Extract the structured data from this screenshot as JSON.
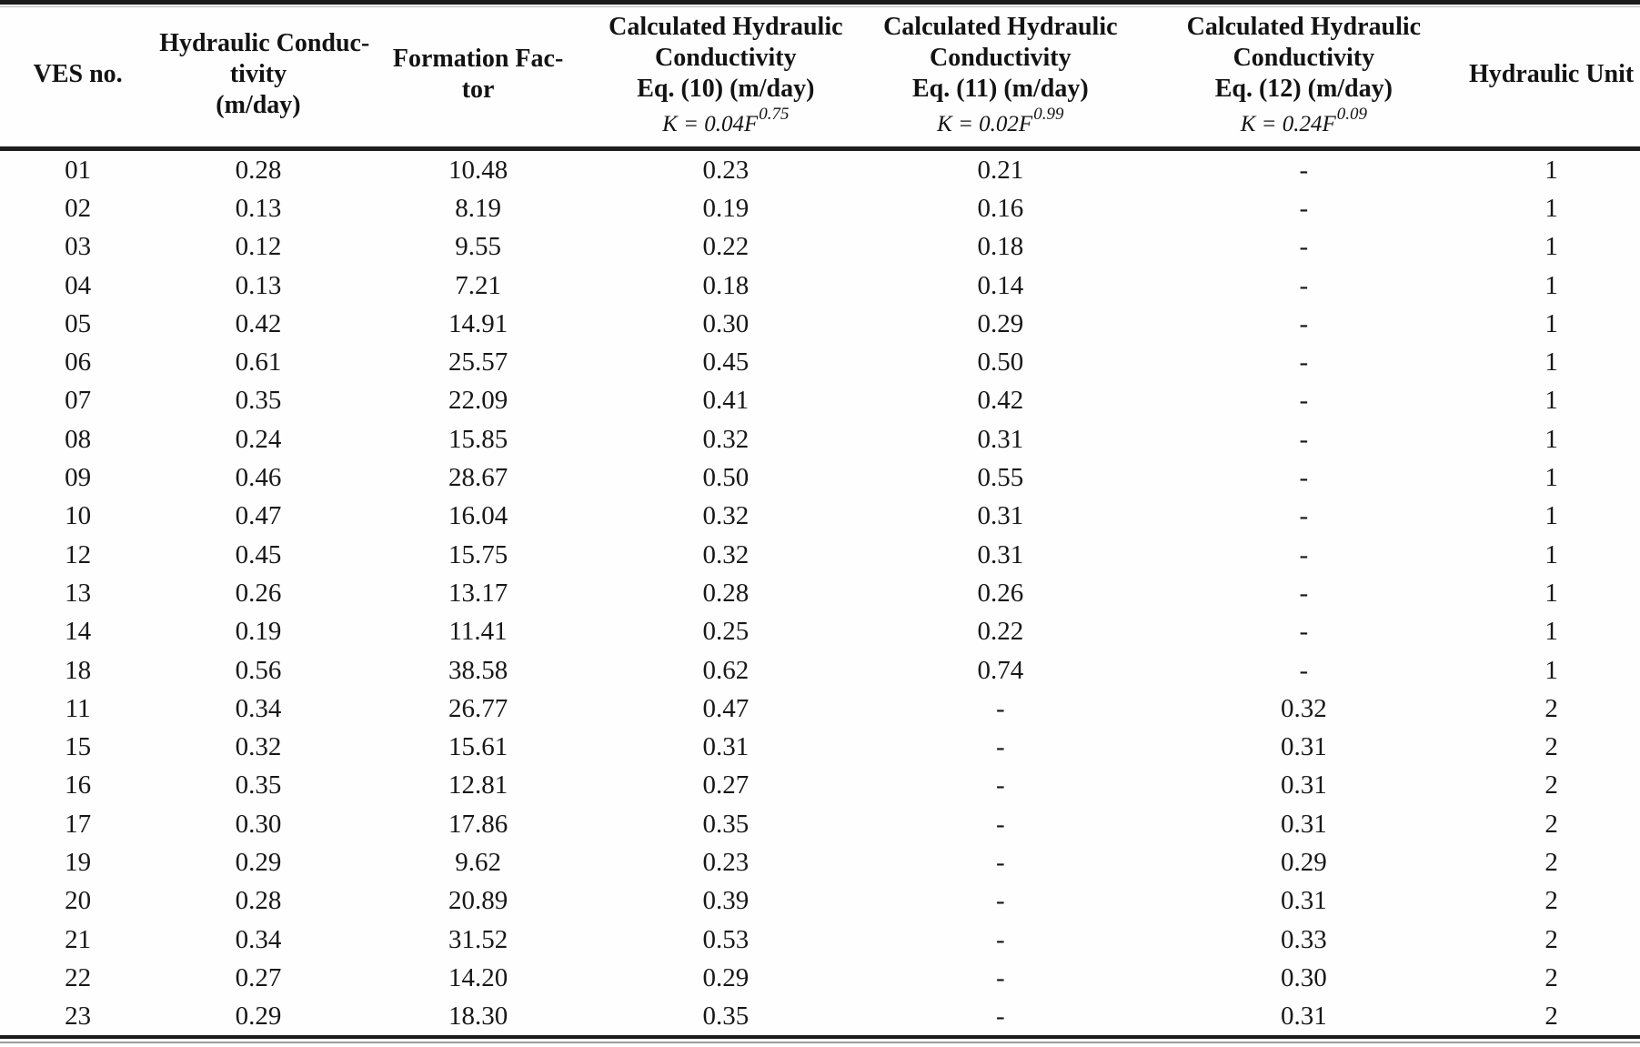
{
  "chart_data": {
    "type": "table",
    "columns": [
      {
        "id": "ves-no",
        "lines": [
          "VES no."
        ]
      },
      {
        "id": "hydraulic-conductivity",
        "lines": [
          "Hydraulic Conduc-",
          "tivity",
          "(m/day)"
        ]
      },
      {
        "id": "formation-factor",
        "lines": [
          "Formation Fac-",
          "tor"
        ]
      },
      {
        "id": "calc-eq10",
        "lines": [
          "Calculated Hydraulic",
          "Conductivity",
          "Eq. (10) (m/day)"
        ],
        "formula_base": "K = 0.04F",
        "formula_exp": "0.75"
      },
      {
        "id": "calc-eq11",
        "lines": [
          "Calculated Hydraulic",
          "Conductivity",
          "Eq. (11) (m/day)"
        ],
        "formula_base": "K = 0.02F",
        "formula_exp": "0.99"
      },
      {
        "id": "calc-eq12",
        "lines": [
          "Calculated Hydraulic",
          "Conductivity",
          "Eq. (12) (m/day)"
        ],
        "formula_base": "K = 0.24F",
        "formula_exp": "0.09"
      },
      {
        "id": "hydraulic-unit",
        "lines": [
          "Hydraulic Unit"
        ]
      }
    ],
    "rows": [
      [
        "01",
        "0.28",
        "10.48",
        "0.23",
        "0.21",
        "-",
        "1"
      ],
      [
        "02",
        "0.13",
        "8.19",
        "0.19",
        "0.16",
        "-",
        "1"
      ],
      [
        "03",
        "0.12",
        "9.55",
        "0.22",
        "0.18",
        "-",
        "1"
      ],
      [
        "04",
        "0.13",
        "7.21",
        "0.18",
        "0.14",
        "-",
        "1"
      ],
      [
        "05",
        "0.42",
        "14.91",
        "0.30",
        "0.29",
        "-",
        "1"
      ],
      [
        "06",
        "0.61",
        "25.57",
        "0.45",
        "0.50",
        "-",
        "1"
      ],
      [
        "07",
        "0.35",
        "22.09",
        "0.41",
        "0.42",
        "-",
        "1"
      ],
      [
        "08",
        "0.24",
        "15.85",
        "0.32",
        "0.31",
        "-",
        "1"
      ],
      [
        "09",
        "0.46",
        "28.67",
        "0.50",
        "0.55",
        "-",
        "1"
      ],
      [
        "10",
        "0.47",
        "16.04",
        "0.32",
        "0.31",
        "-",
        "1"
      ],
      [
        "12",
        "0.45",
        "15.75",
        "0.32",
        "0.31",
        "-",
        "1"
      ],
      [
        "13",
        "0.26",
        "13.17",
        "0.28",
        "0.26",
        "-",
        "1"
      ],
      [
        "14",
        "0.19",
        "11.41",
        "0.25",
        "0.22",
        "-",
        "1"
      ],
      [
        "18",
        "0.56",
        "38.58",
        "0.62",
        "0.74",
        "-",
        "1"
      ],
      [
        "11",
        "0.34",
        "26.77",
        "0.47",
        "-",
        "0.32",
        "2"
      ],
      [
        "15",
        "0.32",
        "15.61",
        "0.31",
        "-",
        "0.31",
        "2"
      ],
      [
        "16",
        "0.35",
        "12.81",
        "0.27",
        "-",
        "0.31",
        "2"
      ],
      [
        "17",
        "0.30",
        "17.86",
        "0.35",
        "-",
        "0.31",
        "2"
      ],
      [
        "19",
        "0.29",
        "9.62",
        "0.23",
        "-",
        "0.29",
        "2"
      ],
      [
        "20",
        "0.28",
        "20.89",
        "0.39",
        "-",
        "0.31",
        "2"
      ],
      [
        "21",
        "0.34",
        "31.52",
        "0.53",
        "-",
        "0.33",
        "2"
      ],
      [
        "22",
        "0.27",
        "14.20",
        "0.29",
        "-",
        "0.30",
        "2"
      ],
      [
        "23",
        "0.29",
        "18.30",
        "0.35",
        "-",
        "0.31",
        "2"
      ]
    ]
  }
}
